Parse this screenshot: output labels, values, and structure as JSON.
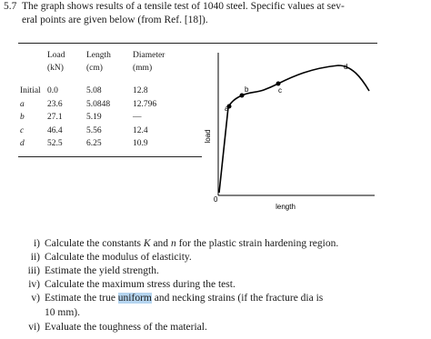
{
  "problem": {
    "number": "5.7",
    "lines": [
      "The graph shows results of a tensile test of 1040 steel. Specific values at sev-",
      "eral points are given below (from Ref. [18])."
    ]
  },
  "table": {
    "header": [
      [
        "Load",
        "(kN)"
      ],
      [
        "Length",
        "(cm)"
      ],
      [
        "Diameter",
        "(mm)"
      ]
    ],
    "rows": [
      [
        "Initial",
        "0.0",
        "5.08",
        "12.8"
      ],
      [
        "a",
        "23.6",
        "5.0848",
        "12.796"
      ],
      [
        "b",
        "27.1",
        "5.19",
        "—"
      ],
      [
        "c",
        "46.4",
        "5.56",
        "12.4"
      ],
      [
        "d",
        "52.5",
        "6.25",
        "10.9"
      ]
    ]
  },
  "graph": {
    "y_label": "load",
    "x_label": "length",
    "origin": "0",
    "points": [
      "a",
      "b",
      "c",
      "d"
    ]
  },
  "questions": [
    {
      "num": "i)",
      "parts": [
        "Calculate the constants ",
        "K",
        " and ",
        "n",
        " for the plastic strain hardening region."
      ]
    },
    {
      "num": "ii)",
      "parts": [
        "Calculate the modulus of elasticity."
      ]
    },
    {
      "num": "iii)",
      "parts": [
        "Estimate the yield strength."
      ]
    },
    {
      "num": "iv)",
      "parts": [
        "Calculate the maximum stress during the test."
      ]
    },
    {
      "num": "v)",
      "parts": [
        "Estimate the true ",
        "uniform",
        " and necking strains (if the fracture dia is"
      ],
      "continuation": "10 mm)."
    },
    {
      "num": "vi)",
      "parts": [
        "Evaluate the toughness of the material."
      ]
    }
  ]
}
